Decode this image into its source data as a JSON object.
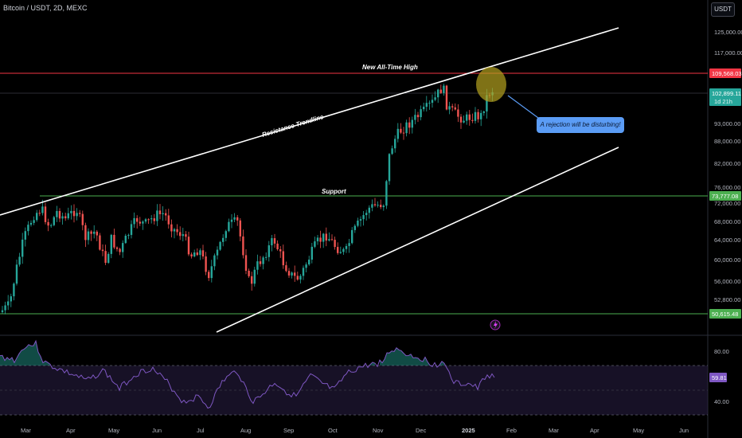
{
  "header": {
    "ticker": "Bitcoin / USDT, 2D, MEXC",
    "currency": "USDT"
  },
  "chart_data": {
    "type": "candlestick",
    "y_axis_labels": [
      "125,000.00",
      "117,000.00",
      "93,000.00",
      "88,000.00",
      "82,000.00",
      "76,000.00",
      "72,000.00",
      "68,000.00",
      "64,000.00",
      "60,000.00",
      "56,000.00",
      "52,800.00"
    ],
    "x_axis_labels": [
      "Mar",
      "Apr",
      "May",
      "Jun",
      "Jul",
      "Aug",
      "Sep",
      "Oct",
      "Nov",
      "Dec",
      "2025",
      "Feb",
      "Mar",
      "Apr",
      "May",
      "Jun"
    ],
    "price_tags": {
      "ath": "109,568.03",
      "current": "102,899.11",
      "countdown": "1d 21h",
      "support": "73,777.08",
      "bottom": "50,615.48"
    },
    "annotations": {
      "ath": "New All-Time High",
      "resistance": "Resistance Trendline",
      "support": "Support",
      "callout": "A rejection will be disturbing!"
    },
    "rsi": {
      "y_axis_labels": [
        "80.00",
        "40.00"
      ],
      "current": "59.81"
    },
    "colors": {
      "up": "#26a69a",
      "down": "#ef5350",
      "ath_line": "#f23645",
      "support_line": "#4caf50",
      "rsi_line": "#7e57c2",
      "callout_bg": "#5b9cf5",
      "highlight": "#b5a320"
    }
  }
}
